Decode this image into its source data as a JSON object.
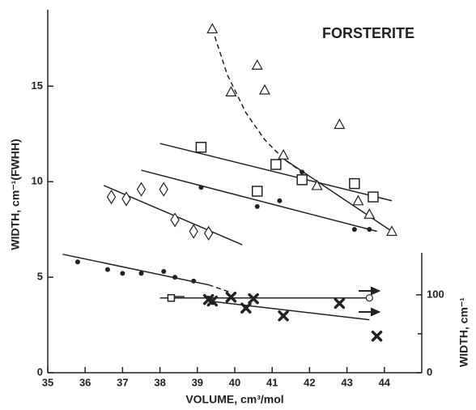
{
  "chart_data": {
    "type": "scatter",
    "annotation": "FORSTERITE",
    "xlabel": "VOLUME, cm³/mol",
    "ylabel": "WIDTH, cm⁻¹(FWHH)",
    "y2label": "WIDTH, cm⁻¹",
    "xlim": [
      35,
      45
    ],
    "xticks": [
      35,
      36,
      37,
      38,
      39,
      40,
      41,
      42,
      43,
      44
    ],
    "ylim": [
      0,
      19
    ],
    "yticks": [
      0,
      5,
      10,
      15
    ],
    "y2lim": [
      0,
      466
    ],
    "y2ticks": [
      0,
      100
    ],
    "y2minor": [
      50
    ],
    "color": "#222222",
    "series": [
      {
        "marker": "half-triangle",
        "x": [
          39.4,
          39.9,
          40.6,
          40.8,
          41.3,
          42.2,
          42.8,
          43.3,
          43.6,
          44.2
        ],
        "values": [
          18.0,
          14.7,
          16.1,
          14.8,
          11.4,
          9.8,
          13.0,
          9.0,
          8.3,
          7.4
        ]
      },
      {
        "marker": "boxed-square",
        "x": [
          39.1,
          40.6,
          41.1,
          41.8,
          43.2,
          43.7
        ],
        "values": [
          11.8,
          9.5,
          10.9,
          10.1,
          9.9,
          9.2
        ]
      },
      {
        "marker": "dot",
        "x": [
          39.1,
          40.6,
          41.2,
          41.8,
          43.2,
          43.6
        ],
        "values": [
          9.7,
          8.7,
          9.0,
          10.5,
          7.5,
          7.5
        ]
      },
      {
        "marker": "diamond",
        "x": [
          36.7,
          37.1,
          37.5,
          38.1,
          38.4,
          38.9,
          39.3
        ],
        "values": [
          9.2,
          9.1,
          9.6,
          9.6,
          8.0,
          7.4,
          7.3
        ]
      },
      {
        "marker": "dot",
        "x": [
          35.8,
          36.6,
          37.0,
          37.5,
          38.1,
          38.4,
          38.9
        ],
        "values": [
          5.8,
          5.4,
          5.2,
          5.2,
          5.3,
          5.0,
          4.8
        ]
      },
      {
        "marker": "cross",
        "axis": "y2",
        "x": [
          39.3,
          39.4,
          39.9,
          40.3,
          40.5,
          41.3,
          42.8,
          43.8
        ],
        "values": [
          94,
          92,
          97,
          83,
          95,
          73,
          89,
          47
        ]
      },
      {
        "marker": "open-square",
        "axis": "y2",
        "x": [
          38.3
        ],
        "values": [
          96
        ]
      },
      {
        "marker": "half-circle",
        "axis": "y2",
        "x": [
          43.6
        ],
        "values": [
          96
        ]
      }
    ],
    "fits": [
      {
        "dash": true,
        "x": [
          39.4,
          39.8,
          40.3,
          40.8,
          41.3,
          41.8
        ],
        "values": [
          18.0,
          15.6,
          13.6,
          12.2,
          11.2,
          10.5
        ]
      },
      {
        "dash": false,
        "x": [
          41.3,
          44.2
        ],
        "values": [
          11.2,
          7.4
        ]
      },
      {
        "dash": false,
        "x": [
          38.0,
          44.2
        ],
        "values": [
          12.0,
          9.0
        ]
      },
      {
        "dash": false,
        "x": [
          37.5,
          43.8
        ],
        "values": [
          10.6,
          7.4
        ]
      },
      {
        "dash": false,
        "x": [
          36.5,
          40.2
        ],
        "values": [
          9.8,
          6.7
        ]
      },
      {
        "dash": false,
        "x": [
          35.4,
          39.3
        ],
        "values": [
          6.2,
          4.6
        ]
      },
      {
        "dash": true,
        "x": [
          39.3,
          39.9
        ],
        "values": [
          4.6,
          4.2
        ]
      },
      {
        "dash": false,
        "axis": "y2",
        "x": [
          38.0,
          43.6
        ],
        "values": [
          96,
          96
        ]
      },
      {
        "dash": false,
        "axis": "y2",
        "x": [
          39.3,
          43.6
        ],
        "values": [
          92,
          68
        ]
      }
    ]
  }
}
